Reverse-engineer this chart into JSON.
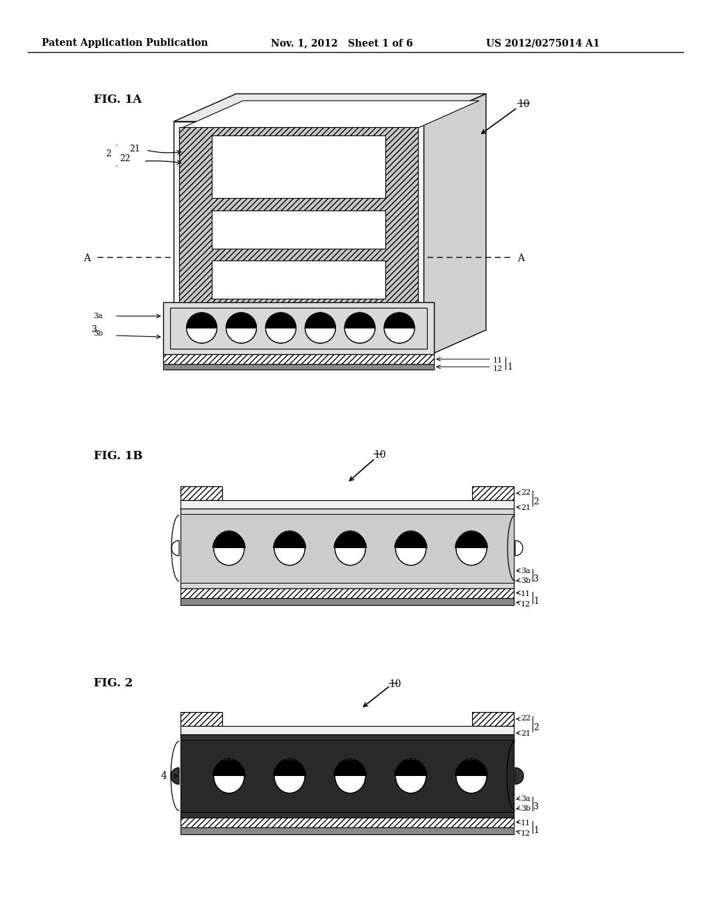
{
  "title_left": "Patent Application Publication",
  "title_mid": "Nov. 1, 2012   Sheet 1 of 6",
  "title_right": "US 2012/0275014 A1",
  "background": "#ffffff",
  "fig1a_label": "FIG. 1A",
  "fig1b_label": "FIG. 1B",
  "fig2_label": "FIG. 2",
  "label_10": "10",
  "label_2": "2",
  "label_21": "21",
  "label_22": "22",
  "label_3": "3",
  "label_3a": "3a",
  "label_3b": "3b",
  "label_1": "1",
  "label_11": "11",
  "label_12": "12",
  "label_4": "4",
  "label_A": "A"
}
